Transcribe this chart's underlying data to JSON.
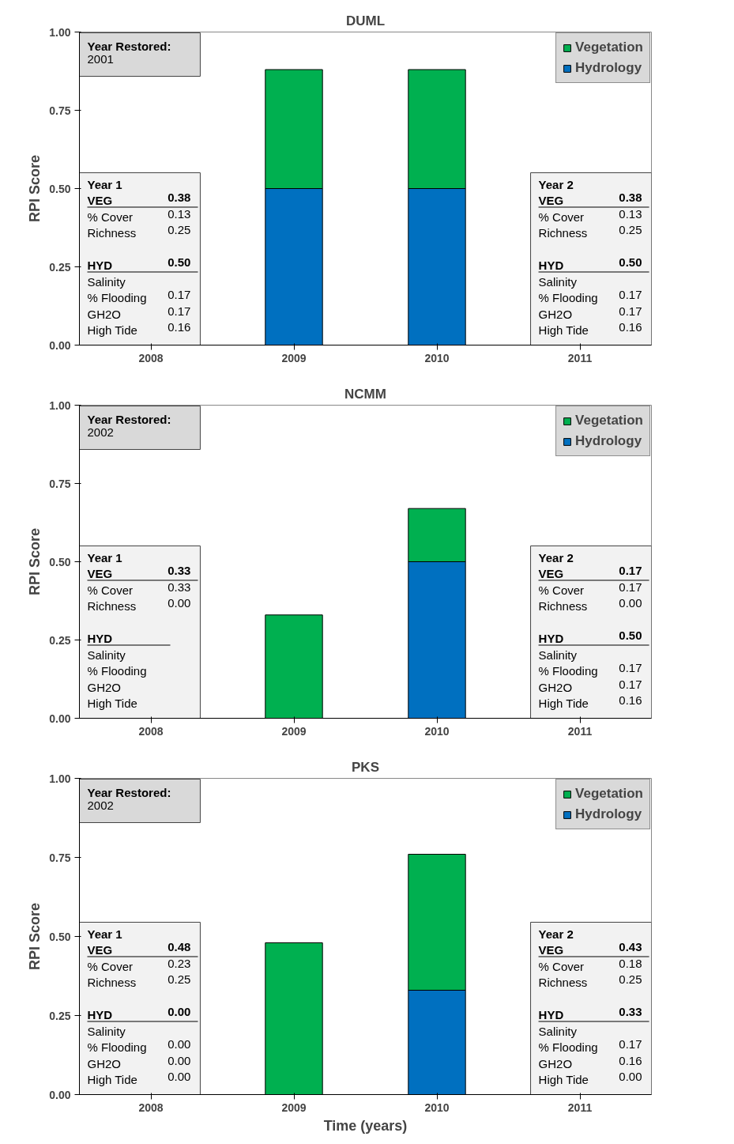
{
  "chart_data": [
    {
      "type": "bar",
      "stacked": true,
      "title": "DUML",
      "ylabel": "RPI Score",
      "categories": [
        "2008",
        "2009",
        "2010",
        "2011"
      ],
      "ylim": [
        0,
        1
      ],
      "yticks": [
        {
          "value": 0,
          "label": "0.00"
        },
        {
          "value": 0.25,
          "label": "0.25"
        },
        {
          "value": 0.5,
          "label": "0.50"
        },
        {
          "value": 0.75,
          "label": "0.75"
        },
        {
          "value": 1,
          "label": "1.00"
        }
      ],
      "legend": "top right",
      "grid": false,
      "series": [
        {
          "name": "Hydrology",
          "color": "#0070c0",
          "values": [
            null,
            0.5,
            0.5,
            null
          ]
        },
        {
          "name": "Vegetation",
          "color": "#00b050",
          "values": [
            null,
            0.38,
            0.38,
            null
          ]
        }
      ],
      "annotations": [
        "Year Restored:\n2001",
        "Year 1\nVEG\t0.38\n% Cover\t0.13\nRichness\t0.25\n\nHYD\t0.50\nSalinity\n% Flooding\t0.17\nGH2O\t0.17\nHigh Tide\t0.16",
        "Year 2\nVEG\t0.38\n% Cover\t0.13\nRichness\t0.25\n\nHYD\t0.50\nSalinity\n% Flooding\t0.17\nGH2O\t0.17\nHigh Tide\t0.16"
      ]
    },
    {
      "type": "bar",
      "stacked": true,
      "title": "NCMM",
      "ylabel": "RPI Score",
      "categories": [
        "2008",
        "2009",
        "2010",
        "2011"
      ],
      "ylim": [
        0,
        1
      ],
      "yticks": [
        {
          "value": 0,
          "label": "0.00"
        },
        {
          "value": 0.25,
          "label": "0.25"
        },
        {
          "value": 0.5,
          "label": "0.50"
        },
        {
          "value": 0.75,
          "label": "0.75"
        },
        {
          "value": 1,
          "label": "1.00"
        }
      ],
      "legend": "top right",
      "grid": false,
      "series": [
        {
          "name": "Hydrology",
          "color": "#0070c0",
          "values": [
            null,
            null,
            0.5,
            null
          ]
        },
        {
          "name": "Vegetation",
          "color": "#00b050",
          "values": [
            null,
            0.33,
            0.17,
            null
          ]
        }
      ],
      "annotations": [
        "Year Restored:\n2002",
        "Year 1\nVEG\t0.33\n% Cover\t0.33\nRichness\t0.00\n\nHYD\nSalinity\n% Flooding\nGH2O\nHigh Tide",
        "Year 2\nVEG\t0.17\n% Cover\t0.17\nRichness\t0.00\n\nHYD\t0.50\nSalinity\n% Flooding\t0.17\nGH2O\t0.17\nHigh Tide\t0.16"
      ]
    },
    {
      "type": "bar",
      "stacked": true,
      "title": "PKS",
      "ylabel": "RPI Score",
      "xlabel": "Time (years)",
      "categories": [
        "2008",
        "2009",
        "2010",
        "2011"
      ],
      "ylim": [
        0,
        1
      ],
      "yticks": [
        {
          "value": 0,
          "label": "0.00"
        },
        {
          "value": 0.25,
          "label": "0.25"
        },
        {
          "value": 0.5,
          "label": "0.50"
        },
        {
          "value": 0.75,
          "label": "0.75"
        },
        {
          "value": 1,
          "label": "1.00"
        }
      ],
      "legend": "top right",
      "grid": false,
      "series": [
        {
          "name": "Hydrology",
          "color": "#0070c0",
          "values": [
            null,
            0,
            0.33,
            null
          ]
        },
        {
          "name": "Vegetation",
          "color": "#00b050",
          "values": [
            null,
            0.48,
            0.43,
            null
          ]
        }
      ],
      "annotations": [
        "Year Restored:\n2002",
        "Year 1\nVEG\t0.48\n% Cover\t0.23\nRichness\t0.25\n\nHYD\t0.00\nSalinity\n% Flooding\t0.00\nGH2O\t0.00\nHigh Tide\t0.00",
        "Year 2\nVEG\t0.43\n% Cover\t0.18\nRichness\t0.25\n\nHYD\t0.33\nSalinity\n% Flooding\t0.17\nGH2O\t0.16\nHigh Tide\t0.00"
      ]
    }
  ]
}
